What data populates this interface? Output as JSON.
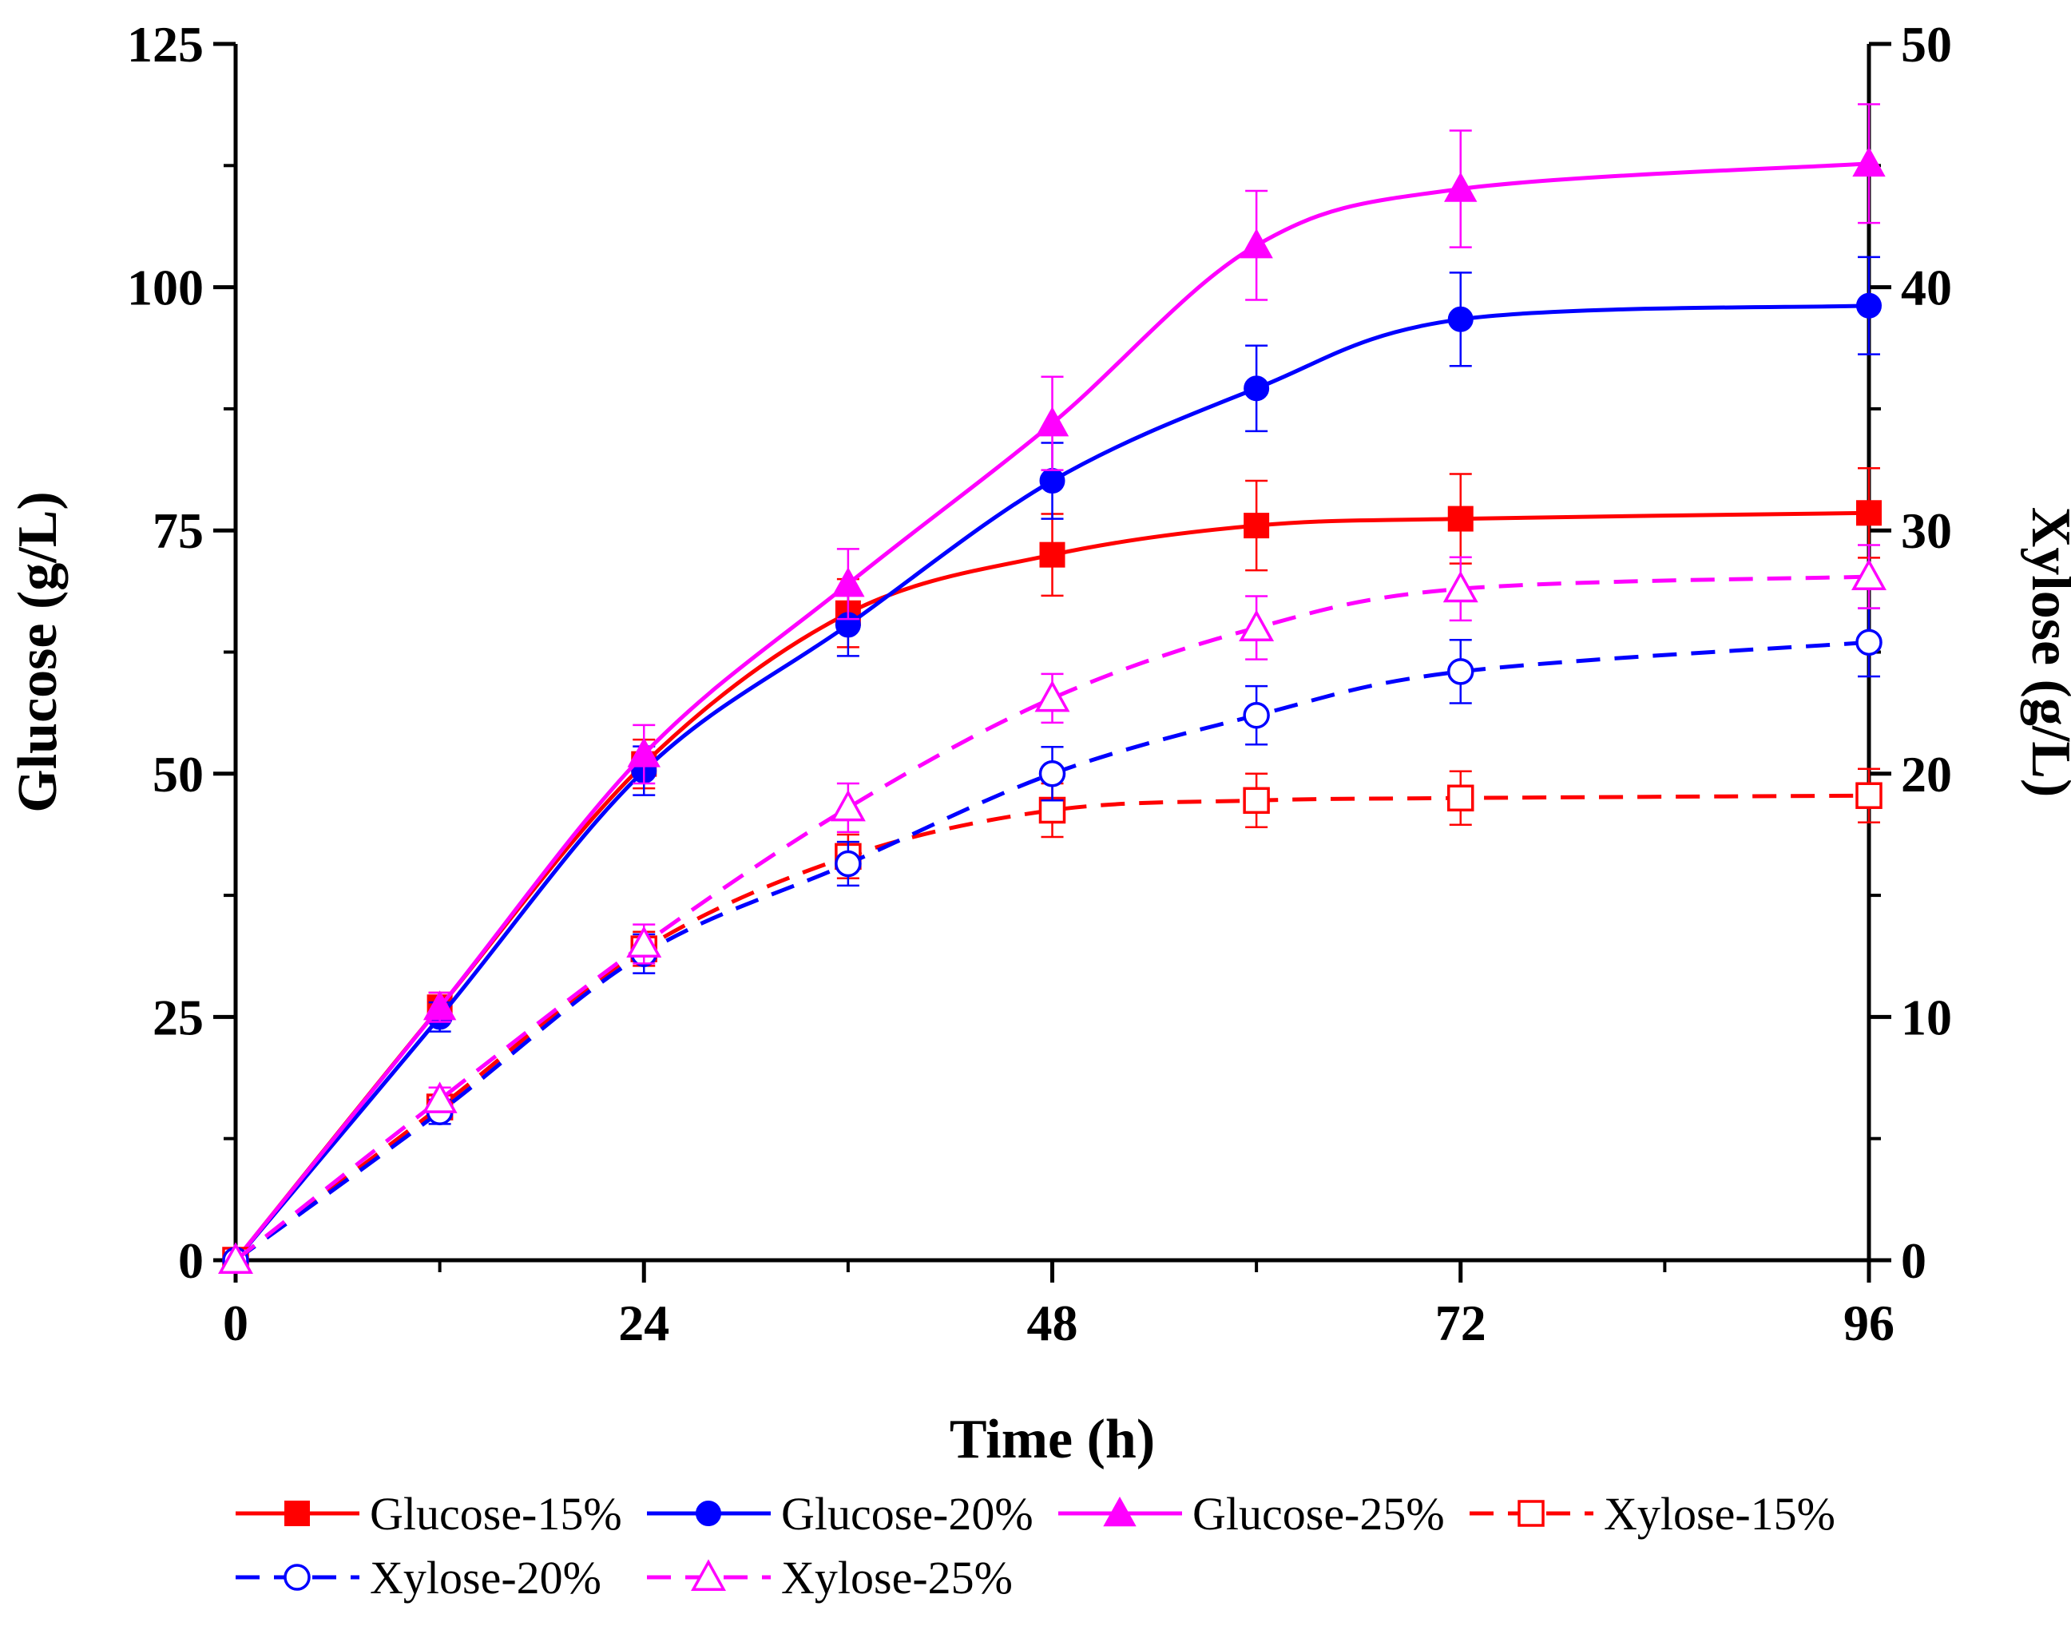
{
  "chart_data": {
    "type": "line",
    "title": "",
    "x": [
      0,
      12,
      24,
      36,
      48,
      60,
      72,
      96
    ],
    "xlabel": "Time (h)",
    "ylabel_left": "Glucose (g/L)",
    "ylabel_right": "Xylose (g/L)",
    "xlim": [
      0,
      96
    ],
    "ylim_left": [
      0,
      125
    ],
    "ylim_right": [
      0,
      50
    ],
    "x_ticks": [
      0,
      24,
      48,
      72,
      96
    ],
    "y_ticks_left": [
      0,
      25,
      50,
      75,
      100,
      125
    ],
    "y_ticks_right": [
      0,
      10,
      20,
      30,
      40,
      50
    ],
    "x_tick_labels": [
      "0",
      "24",
      "48",
      "72",
      "96"
    ],
    "y_tick_labels_left": [
      "0",
      "25",
      "50",
      "75",
      "100",
      "125"
    ],
    "y_tick_labels_right": [
      "0",
      "10",
      "20",
      "30",
      "40",
      "50"
    ],
    "legend_position": "bottom",
    "grid": false,
    "series": [
      {
        "name": "Glucose-15%",
        "axis": "left",
        "color": "#ff0000",
        "marker": "square",
        "filled": true,
        "dashed": false,
        "values": [
          0,
          26,
          51,
          66.5,
          72.5,
          75.5,
          76.2,
          76.8
        ],
        "errors": [
          0,
          1.5,
          2.5,
          3.5,
          4.2,
          4.6,
          4.6,
          4.6
        ]
      },
      {
        "name": "Glucose-20%",
        "axis": "left",
        "color": "#0000ff",
        "marker": "circle",
        "filled": true,
        "dashed": false,
        "values": [
          0,
          25,
          50.3,
          65.3,
          80.1,
          89.6,
          96.7,
          98.1
        ],
        "errors": [
          0,
          1.5,
          2.5,
          3.2,
          3.9,
          4.4,
          4.8,
          5.0
        ]
      },
      {
        "name": "Glucose-25%",
        "axis": "left",
        "color": "#ff00ff",
        "marker": "triangle",
        "filled": true,
        "dashed": false,
        "values": [
          0,
          26,
          52,
          69.5,
          86,
          104.3,
          110.1,
          112.7
        ],
        "errors": [
          0,
          1.5,
          3.0,
          3.6,
          4.8,
          5.6,
          6.0,
          6.1
        ]
      },
      {
        "name": "Xylose-15%",
        "axis": "right",
        "color": "#ff0000",
        "marker": "square",
        "filled": false,
        "dashed": true,
        "values": [
          0,
          6.3,
          12.8,
          16.6,
          18.5,
          18.9,
          19.0,
          19.1
        ],
        "errors": [
          0,
          0.5,
          0.7,
          0.9,
          1.1,
          1.1,
          1.1,
          1.1
        ]
      },
      {
        "name": "Xylose-20%",
        "axis": "right",
        "color": "#0000ff",
        "marker": "circle",
        "filled": false,
        "dashed": true,
        "values": [
          0,
          6.1,
          12.6,
          16.3,
          20.0,
          22.4,
          24.2,
          25.4
        ],
        "errors": [
          0,
          0.5,
          0.8,
          0.9,
          1.1,
          1.2,
          1.3,
          1.4
        ]
      },
      {
        "name": "Xylose-25%",
        "axis": "right",
        "color": "#ff00ff",
        "marker": "triangle",
        "filled": false,
        "dashed": true,
        "values": [
          0,
          6.6,
          13.0,
          18.6,
          23.1,
          26.0,
          27.6,
          28.1
        ],
        "errors": [
          0,
          0.5,
          0.8,
          1.0,
          1.0,
          1.3,
          1.3,
          1.3
        ]
      }
    ]
  }
}
